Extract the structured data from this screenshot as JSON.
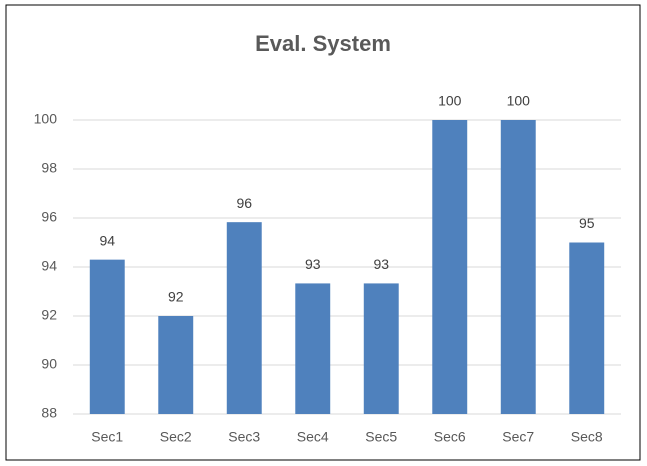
{
  "chart_data": {
    "type": "bar",
    "title": "Eval. System",
    "categories": [
      "Sec1",
      "Sec2",
      "Sec3",
      "Sec4",
      "Sec5",
      "Sec6",
      "Sec7",
      "Sec8"
    ],
    "values": [
      94.3,
      92,
      95.83,
      93.33,
      93.33,
      100,
      100,
      95
    ],
    "value_labels": [
      "94",
      "92",
      "96",
      "93",
      "93",
      "100",
      "100",
      "95"
    ],
    "color": "#4f81bd",
    "ylim": [
      88,
      102
    ],
    "yticks": [
      88,
      90,
      92,
      94,
      96,
      98,
      100
    ],
    "grid": true
  }
}
